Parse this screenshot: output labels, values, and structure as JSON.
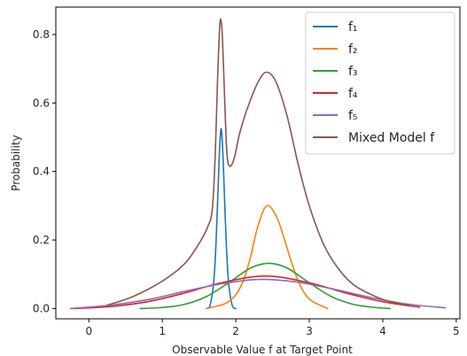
{
  "chart_data": {
    "type": "line",
    "title": "",
    "xlabel": "Observable Value f at Target Point",
    "ylabel": "Probability",
    "xlim": [
      -0.45,
      5.05
    ],
    "ylim": [
      -0.03,
      0.88
    ],
    "xticks": [
      0,
      1,
      2,
      3,
      4,
      5
    ],
    "xtick_labels": [
      "0",
      "1",
      "2",
      "3",
      "4",
      "5"
    ],
    "yticks": [
      0.0,
      0.2,
      0.4,
      0.6,
      0.8
    ],
    "ytick_labels": [
      "0.0",
      "0.2",
      "0.4",
      "0.6",
      "0.8"
    ],
    "grid": false,
    "legend_position": "top-right",
    "series": [
      {
        "name": "f₁",
        "color": "#1f77b4",
        "x": [
          1.6,
          1.65,
          1.7,
          1.73,
          1.76,
          1.78,
          1.8,
          1.82,
          1.84,
          1.87,
          1.9,
          1.95,
          2.0
        ],
        "y": [
          0.0,
          0.01,
          0.08,
          0.19,
          0.36,
          0.47,
          0.525,
          0.47,
          0.36,
          0.19,
          0.08,
          0.01,
          0.0
        ]
      },
      {
        "name": "f₂",
        "color": "#ff7f0e",
        "x": [
          1.6,
          1.8,
          1.9,
          2.0,
          2.1,
          2.2,
          2.3,
          2.42,
          2.55,
          2.65,
          2.75,
          2.85,
          2.95,
          3.05,
          3.25
        ],
        "y": [
          0.0,
          0.01,
          0.02,
          0.04,
          0.08,
          0.15,
          0.24,
          0.3,
          0.27,
          0.21,
          0.14,
          0.08,
          0.04,
          0.02,
          0.0
        ]
      },
      {
        "name": "f₃",
        "color": "#2ca02c",
        "x": [
          0.7,
          1.0,
          1.3,
          1.6,
          1.9,
          2.2,
          2.45,
          2.7,
          3.0,
          3.3,
          3.6,
          3.9,
          4.1
        ],
        "y": [
          0.0,
          0.003,
          0.012,
          0.035,
          0.075,
          0.118,
          0.132,
          0.118,
          0.075,
          0.035,
          0.012,
          0.003,
          0.0
        ]
      },
      {
        "name": "f₄",
        "color": "#d62728",
        "x": [
          -0.2,
          0.3,
          0.8,
          1.3,
          1.8,
          2.4,
          3.0,
          3.5,
          4.0,
          4.5
        ],
        "y": [
          0.0,
          0.006,
          0.02,
          0.045,
          0.075,
          0.095,
          0.075,
          0.045,
          0.02,
          0.004
        ]
      },
      {
        "name": "f₅",
        "color": "#9467bd",
        "x": [
          -0.25,
          0.3,
          0.8,
          1.3,
          1.8,
          2.3,
          2.8,
          3.3,
          3.8,
          4.3,
          4.85
        ],
        "y": [
          0.0,
          0.01,
          0.026,
          0.05,
          0.072,
          0.085,
          0.078,
          0.058,
          0.034,
          0.014,
          0.002
        ]
      },
      {
        "name": "Mixed Model f",
        "color": "#8c564b",
        "x": [
          0.25,
          0.6,
          1.0,
          1.3,
          1.5,
          1.62,
          1.68,
          1.72,
          1.75,
          1.78,
          1.8,
          1.82,
          1.85,
          1.88,
          1.92,
          1.98,
          2.05,
          2.15,
          2.3,
          2.42,
          2.55,
          2.7,
          2.85,
          3.0,
          3.2,
          3.4,
          3.6,
          3.85,
          4.1,
          4.35
        ],
        "y": [
          0.01,
          0.035,
          0.08,
          0.13,
          0.19,
          0.24,
          0.29,
          0.45,
          0.66,
          0.82,
          0.84,
          0.78,
          0.6,
          0.45,
          0.415,
          0.44,
          0.51,
          0.58,
          0.66,
          0.69,
          0.66,
          0.56,
          0.42,
          0.3,
          0.185,
          0.115,
          0.07,
          0.04,
          0.02,
          0.01
        ]
      }
    ]
  }
}
